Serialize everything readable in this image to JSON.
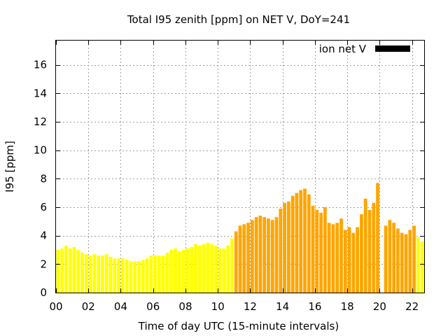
{
  "chart_data": {
    "type": "bar",
    "title": "Total I95 zenith [ppm] on NET V, DoY=241",
    "xlabel": "Time of day UTC (15-minute intervals)",
    "ylabel": "I95 [ppm]",
    "xlim": [
      0,
      22.75
    ],
    "ylim": [
      0,
      17.7
    ],
    "interval_hours": 0.25,
    "xticks": [
      0,
      2,
      4,
      6,
      8,
      10,
      12,
      14,
      16,
      18,
      20,
      22
    ],
    "xtick_labels": [
      "00",
      "02",
      "04",
      "06",
      "08",
      "10",
      "12",
      "14",
      "16",
      "18",
      "20",
      "22"
    ],
    "yticks": [
      0,
      2,
      4,
      6,
      8,
      10,
      12,
      14,
      16
    ],
    "ytick_labels": [
      "0",
      "2",
      "4",
      "6",
      "8",
      "10",
      "12",
      "14",
      "16"
    ],
    "grid": true,
    "legend": {
      "position": "top-right",
      "label": "ion net V",
      "color": "#000000"
    },
    "colors": {
      "low": "#ffff00",
      "high": "#ffa500"
    },
    "values": [
      3.0,
      3.1,
      3.3,
      3.1,
      3.2,
      3.0,
      2.8,
      2.7,
      2.6,
      2.7,
      2.6,
      2.6,
      2.7,
      2.5,
      2.4,
      2.4,
      2.4,
      2.3,
      2.2,
      2.2,
      2.2,
      2.3,
      2.4,
      2.6,
      2.6,
      2.6,
      2.6,
      2.8,
      3.0,
      3.1,
      2.9,
      3.0,
      3.1,
      3.2,
      3.4,
      3.3,
      3.4,
      3.5,
      3.4,
      3.3,
      3.1,
      3.1,
      3.3,
      3.8,
      4.3,
      4.7,
      4.8,
      4.9,
      5.1,
      5.3,
      5.4,
      5.3,
      5.2,
      5.1,
      5.3,
      5.9,
      6.3,
      6.4,
      6.8,
      7.0,
      7.2,
      7.3,
      6.9,
      6.1,
      5.8,
      5.6,
      6.0,
      4.9,
      4.8,
      4.9,
      5.2,
      4.4,
      4.6,
      4.2,
      4.6,
      5.5,
      6.6,
      5.8,
      6.3,
      7.7,
      0.0,
      4.7,
      5.1,
      4.9,
      4.5,
      4.2,
      4.1,
      4.4,
      4.7,
      3.9,
      3.6
    ],
    "value_colors": [
      "low",
      "low",
      "low",
      "low",
      "low",
      "low",
      "low",
      "low",
      "low",
      "low",
      "low",
      "low",
      "low",
      "low",
      "low",
      "low",
      "low",
      "low",
      "low",
      "low",
      "low",
      "low",
      "low",
      "low",
      "low",
      "low",
      "low",
      "low",
      "low",
      "low",
      "low",
      "low",
      "low",
      "low",
      "low",
      "low",
      "low",
      "low",
      "low",
      "low",
      "low",
      "low",
      "low",
      "low",
      "high",
      "high",
      "high",
      "high",
      "high",
      "high",
      "high",
      "high",
      "high",
      "high",
      "high",
      "high",
      "high",
      "high",
      "high",
      "high",
      "high",
      "high",
      "high",
      "high",
      "high",
      "high",
      "high",
      "high",
      "high",
      "high",
      "high",
      "high",
      "high",
      "high",
      "high",
      "high",
      "high",
      "high",
      "high",
      "high",
      "high",
      "high",
      "high",
      "high",
      "high",
      "high",
      "high",
      "high",
      "high",
      "low",
      "low"
    ]
  }
}
